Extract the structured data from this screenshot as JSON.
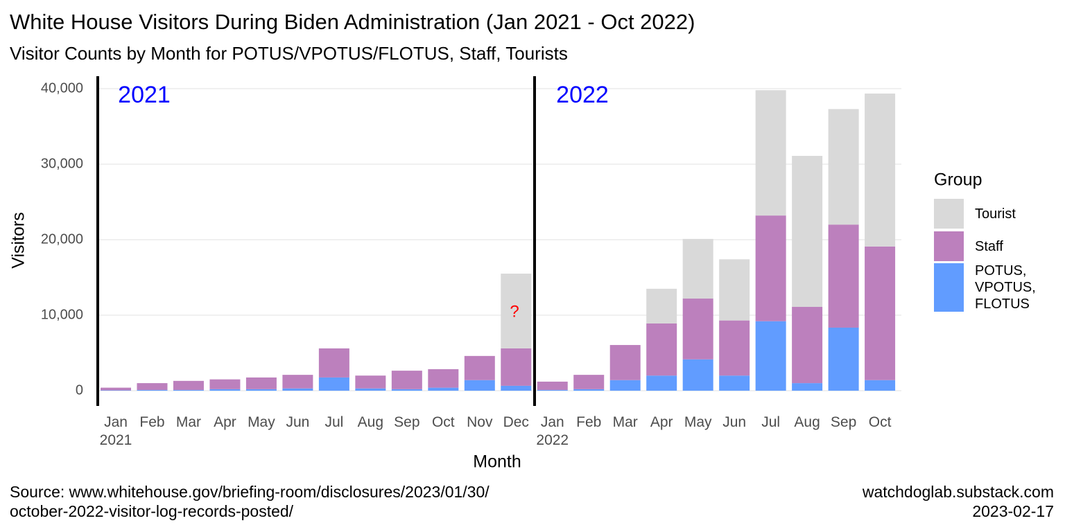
{
  "chart_data": {
    "type": "stacked_bar",
    "title": "White House Visitors During Biden Administration (Jan 2021 - Oct 2022)",
    "subtitle": "Visitor Counts by Month for POTUS/VPOTUS/FLOTUS, Staff, Tourists",
    "x_label": "Month",
    "y_label": "Visitors",
    "legend_title": "Group",
    "legend_position": "right",
    "grid": true,
    "categories": [
      "Jan 2021",
      "Feb",
      "Mar",
      "Apr",
      "May",
      "Jun",
      "Jul",
      "Aug",
      "Sep",
      "Oct",
      "Nov",
      "Dec",
      "Jan 2022",
      "Feb",
      "Mar",
      "Apr",
      "May",
      "Jun",
      "Jul",
      "Aug",
      "Sep",
      "Oct"
    ],
    "series": [
      {
        "name": "POTUS, VPOTUS, FLOTUS",
        "color": "#619cff",
        "values": [
          50,
          100,
          100,
          200,
          200,
          300,
          1750,
          300,
          200,
          400,
          1400,
          650,
          100,
          200,
          1400,
          2000,
          4150,
          2000,
          9200,
          1000,
          8350,
          1400
        ]
      },
      {
        "name": "Staff",
        "color": "#bc80bd",
        "values": [
          350,
          900,
          1200,
          1300,
          1550,
          1800,
          3850,
          1700,
          2450,
          2450,
          3200,
          4950,
          1100,
          1900,
          4650,
          6900,
          8050,
          7300,
          14000,
          10100,
          13650,
          17700
        ]
      },
      {
        "name": "Tourist",
        "color": "#d9d9d9",
        "values": [
          0,
          0,
          0,
          0,
          0,
          0,
          0,
          0,
          0,
          0,
          0,
          9900,
          0,
          0,
          0,
          4600,
          7900,
          8100,
          16600,
          20000,
          15300,
          20250
        ]
      }
    ],
    "ylim": [
      -2000,
      41500
    ],
    "yticks": [
      0,
      {
        "value": 10000,
        "label": "10,000"
      },
      {
        "value": 20000,
        "label": "20,000"
      },
      {
        "value": 30000,
        "label": "30,000"
      },
      {
        "value": 40000,
        "label": "40,000"
      }
    ],
    "annotations": [
      {
        "text": "2021",
        "color": "#0000ff"
      },
      {
        "text": "2022",
        "color": "#0000ff"
      },
      {
        "text": "?",
        "color": "#ff0000"
      }
    ],
    "source": [
      "Source: www.whitehouse.gov/briefing-room/disclosures/2023/01/30/",
      "october-2022-visitor-log-records-posted/"
    ],
    "credit": [
      "watchdoglab.substack.com",
      "2023-02-17"
    ]
  }
}
